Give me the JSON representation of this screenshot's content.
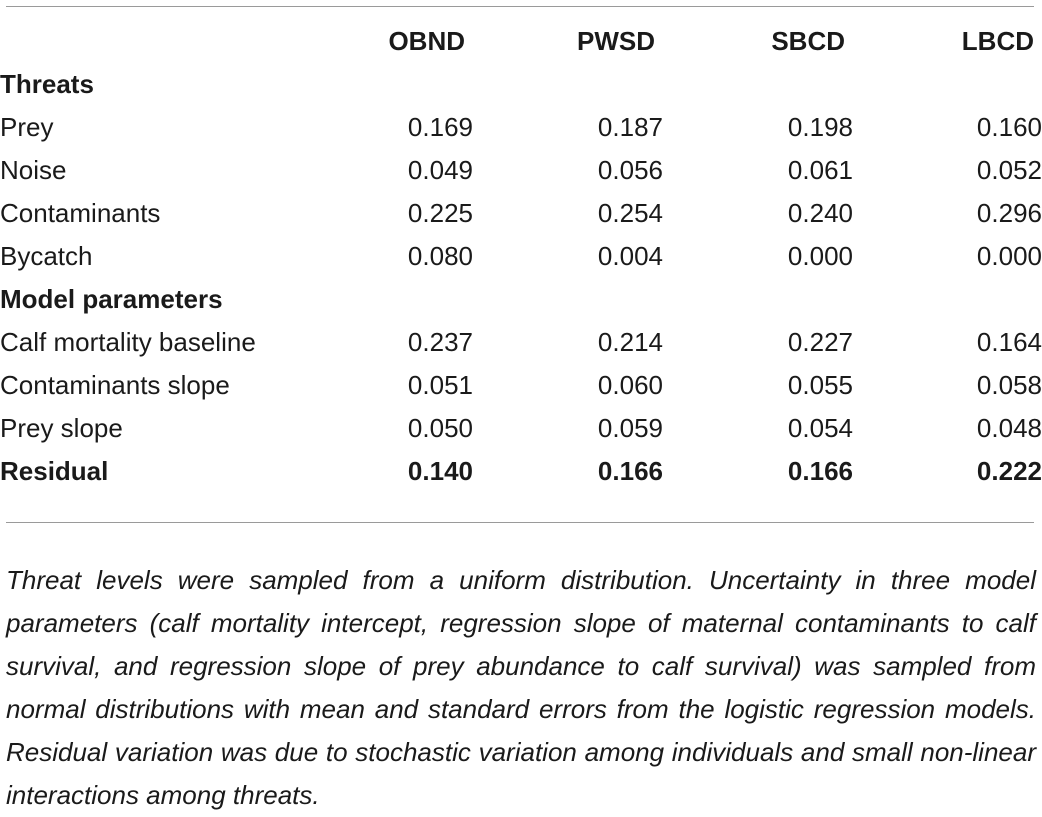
{
  "table": {
    "columns": [
      "",
      "OBND",
      "PWSD",
      "SBCD",
      "LBCD"
    ],
    "sections": [
      {
        "heading": "Threats",
        "rows": [
          {
            "label": "Prey",
            "values": [
              "0.169",
              "0.187",
              "0.198",
              "0.160"
            ]
          },
          {
            "label": "Noise",
            "values": [
              "0.049",
              "0.056",
              "0.061",
              "0.052"
            ]
          },
          {
            "label": "Contaminants",
            "values": [
              "0.225",
              "0.254",
              "0.240",
              "0.296"
            ]
          },
          {
            "label": "Bycatch",
            "values": [
              "0.080",
              "0.004",
              "0.000",
              "0.000"
            ]
          }
        ]
      },
      {
        "heading": "Model parameters",
        "rows": [
          {
            "label": "Calf mortality baseline",
            "values": [
              "0.237",
              "0.214",
              "0.227",
              "0.164"
            ]
          },
          {
            "label": "Contaminants slope",
            "values": [
              "0.051",
              "0.060",
              "0.055",
              "0.058"
            ]
          },
          {
            "label": "Prey slope",
            "values": [
              "0.050",
              "0.059",
              "0.054",
              "0.048"
            ]
          }
        ]
      }
    ],
    "residual": {
      "label": "Residual",
      "values": [
        "0.140",
        "0.166",
        "0.166",
        "0.222"
      ]
    }
  },
  "footnote": "Threat levels were sampled from a uniform distribution. Uncertainty in three model parameters (calf mortality intercept, regression slope of maternal contaminants to calf survival, and regression slope of prey abundance to calf survival) was sampled from normal distributions with mean and standard errors from the logistic regression models. Residual variation was due to stochastic variation among individuals and small non-linear interactions among threats."
}
